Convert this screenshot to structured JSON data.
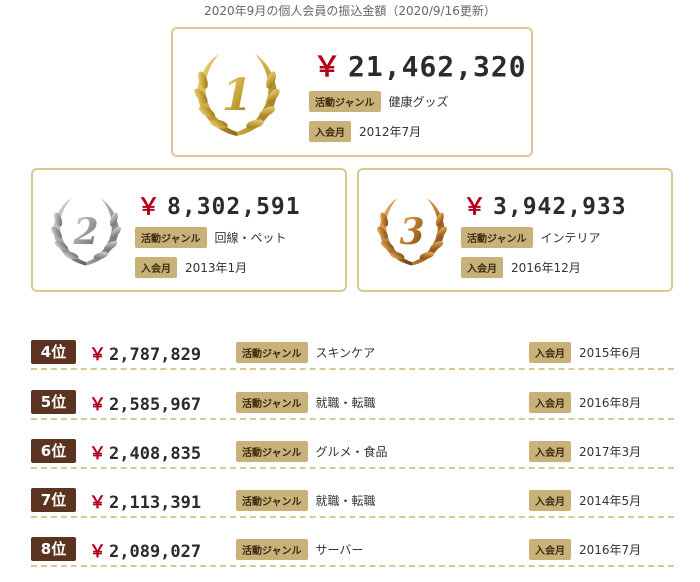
{
  "caption": "2020年9月の個人会員の振込金額（2020/9/16更新）",
  "labels": {
    "genre": "活動ジャンル",
    "joined": "入会月",
    "currency": "￥"
  },
  "colors": {
    "gold": "#c9a53a",
    "silver": "#9e9e9e",
    "bronze": "#b8782c",
    "badge": "#5a3420",
    "yen": "#b3001b"
  },
  "top3": [
    {
      "rank_numeral": "1",
      "amount": "21,462,320",
      "genre": "健康グッズ",
      "joined": "2012年7月",
      "medal": "gold"
    },
    {
      "rank_numeral": "2",
      "amount": "8,302,591",
      "genre": "回線・ペット",
      "joined": "2013年1月",
      "medal": "silver"
    },
    {
      "rank_numeral": "3",
      "amount": "3,942,933",
      "genre": "インテリア",
      "joined": "2016年12月",
      "medal": "bronze"
    }
  ],
  "ranks": [
    {
      "rank": "4位",
      "amount": "2,787,829",
      "genre": "スキンケア",
      "joined": "2015年6月"
    },
    {
      "rank": "5位",
      "amount": "2,585,967",
      "genre": "就職・転職",
      "joined": "2016年8月"
    },
    {
      "rank": "6位",
      "amount": "2,408,835",
      "genre": "グルメ・食品",
      "joined": "2017年3月"
    },
    {
      "rank": "7位",
      "amount": "2,113,391",
      "genre": "就職・転職",
      "joined": "2014年5月"
    },
    {
      "rank": "8位",
      "amount": "2,089,027",
      "genre": "サーバー",
      "joined": "2016年7月"
    }
  ]
}
